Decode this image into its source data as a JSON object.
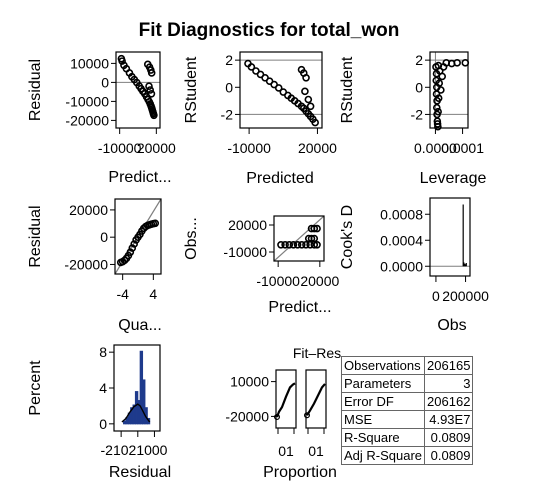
{
  "chart_data": {
    "type": "scatter",
    "title": "Fit Diagnostics for total_won",
    "style": {
      "axis_color": "#000000",
      "ref_line_color": "#7f7f7f",
      "point_color": "#000000",
      "hist_fill": "#1f3b8c",
      "density_color": "#000000"
    },
    "panels": [
      {
        "id": "resid_pred",
        "type": "scatter",
        "xlabel": "Predict...",
        "ylabel": "Residual",
        "xlim": [
          -13000,
          23000
        ],
        "ylim": [
          -24000,
          16000
        ],
        "xticks": [
          {
            "v": -10000,
            "label": "-10000"
          },
          {
            "v": 20000,
            "label": "20000"
          }
        ],
        "yticks": [
          {
            "v": 10000,
            "label": "10000"
          },
          {
            "v": 0,
            "label": "0"
          },
          {
            "v": -10000,
            "label": "-10000"
          },
          {
            "v": -20000,
            "label": "-20000"
          }
        ],
        "hlines": [
          0
        ],
        "points": [
          [
            -8600,
            12500
          ],
          [
            -8000,
            11200
          ],
          [
            -6500,
            9000
          ],
          [
            -4500,
            7200
          ],
          [
            -2000,
            5000
          ],
          [
            0,
            3000
          ],
          [
            2000,
            1500
          ],
          [
            4000,
            -100
          ],
          [
            6000,
            -1900
          ],
          [
            7500,
            -3300
          ],
          [
            9000,
            -4700
          ],
          [
            10500,
            -6000
          ],
          [
            12000,
            -7600
          ],
          [
            13200,
            -9000
          ],
          [
            14200,
            -10200
          ],
          [
            15000,
            -11300
          ],
          [
            15600,
            -12300
          ],
          [
            16100,
            -13200
          ],
          [
            16500,
            -14000
          ],
          [
            16900,
            -14900
          ],
          [
            17300,
            -15700
          ],
          [
            17600,
            -16500
          ],
          [
            18000,
            -17300
          ],
          [
            13000,
            9500
          ],
          [
            14500,
            8000
          ],
          [
            15500,
            6500
          ],
          [
            16200,
            5000
          ],
          [
            14000,
            -2000
          ],
          [
            15000,
            -4000
          ],
          [
            16000,
            -6000
          ]
        ]
      },
      {
        "id": "rstud_pred",
        "type": "scatter",
        "xlabel": "Predicted",
        "ylabel": "RStudent",
        "xlim": [
          -14000,
          22000
        ],
        "ylim": [
          -3,
          2.6
        ],
        "xticks": [
          {
            "v": -10000,
            "label": "-10000"
          },
          {
            "v": 20000,
            "label": "20000"
          }
        ],
        "yticks": [
          {
            "v": 2,
            "label": "2"
          },
          {
            "v": 0,
            "label": "0"
          },
          {
            "v": -2,
            "label": "-2"
          }
        ],
        "hlines": [
          2,
          -2
        ],
        "points": [
          [
            -10500,
            1.75
          ],
          [
            -9000,
            1.5
          ],
          [
            -7000,
            1.2
          ],
          [
            -5000,
            0.95
          ],
          [
            -3000,
            0.7
          ],
          [
            -1000,
            0.45
          ],
          [
            1000,
            0.2
          ],
          [
            3000,
            -0.05
          ],
          [
            5000,
            -0.35
          ],
          [
            7000,
            -0.6
          ],
          [
            8500,
            -0.8
          ],
          [
            10000,
            -1.0
          ],
          [
            11500,
            -1.2
          ],
          [
            13000,
            -1.4
          ],
          [
            14000,
            -1.55
          ],
          [
            15000,
            -1.75
          ],
          [
            16000,
            -1.95
          ],
          [
            17000,
            -2.15
          ],
          [
            18000,
            -2.35
          ],
          [
            19000,
            -2.6
          ],
          [
            13000,
            1.3
          ],
          [
            14000,
            1.05
          ],
          [
            15000,
            0.7
          ],
          [
            14500,
            -0.3
          ],
          [
            16000,
            -0.9
          ],
          [
            17000,
            -1.4
          ]
        ]
      },
      {
        "id": "rstud_lev",
        "type": "scatter",
        "xlabel": "Leverage",
        "ylabel": "RStudent",
        "xlim": [
          -2e-05,
          0.00012
        ],
        "ylim": [
          -3,
          2.6
        ],
        "xticks": [
          {
            "v": 0.0,
            "label": "0.0000"
          },
          {
            "v": 0.0001,
            "label": "0.0001"
          }
        ],
        "yticks": [
          {
            "v": 2,
            "label": "2"
          },
          {
            "v": 0,
            "label": "0"
          },
          {
            "v": -2,
            "label": "-2"
          }
        ],
        "hlines": [
          2,
          -2
        ],
        "vlines": [
          0.0
        ],
        "points": [
          [
            2e-06,
            1.5
          ],
          [
            4e-06,
            1.0
          ],
          [
            3e-06,
            0.5
          ],
          [
            5e-06,
            0.0
          ],
          [
            4e-06,
            -0.5
          ],
          [
            6e-06,
            -1.0
          ],
          [
            5e-06,
            -1.5
          ],
          [
            6e-06,
            -2.0
          ],
          [
            7e-06,
            -2.5
          ],
          [
            8e-06,
            -2.7
          ],
          [
            1e-05,
            -1.8
          ],
          [
            1.2e-05,
            -0.8
          ],
          [
            1.4e-05,
            0.3
          ],
          [
            1.6e-05,
            1.2
          ],
          [
            2e-05,
            -0.2
          ],
          [
            2.5e-05,
            0.8
          ],
          [
            3e-05,
            1.5
          ],
          [
            4e-05,
            1.8
          ],
          [
            6e-05,
            1.75
          ],
          [
            8e-05,
            1.8
          ],
          [
            0.00011,
            1.8
          ],
          [
            9e-06,
            -2.9
          ],
          [
            1.1e-05,
            1.6
          ]
        ]
      },
      {
        "id": "qq",
        "type": "scatter",
        "xlabel": "Qua...",
        "ylabel": "Residual",
        "xlim": [
          -6,
          6
        ],
        "ylim": [
          -27000,
          28000
        ],
        "xticks": [
          {
            "v": -4,
            "label": "-4"
          },
          {
            "v": 4,
            "label": "4"
          }
        ],
        "yticks": [
          {
            "v": 20000,
            "label": "20000"
          },
          {
            "v": 0,
            "label": "0"
          },
          {
            "v": -20000,
            "label": "-20000"
          }
        ],
        "diag_line": [
          [
            -6,
            -27000
          ],
          [
            6,
            28000
          ]
        ],
        "points": [
          [
            -4.5,
            -18500
          ],
          [
            -4,
            -18000
          ],
          [
            -3.5,
            -17000
          ],
          [
            -3,
            -15500
          ],
          [
            -2.5,
            -13500
          ],
          [
            -2,
            -11000
          ],
          [
            -1.5,
            -8000
          ],
          [
            -1,
            -5000
          ],
          [
            -0.5,
            -2000
          ],
          [
            0,
            0
          ],
          [
            0.5,
            2000
          ],
          [
            1,
            4500
          ],
          [
            1.5,
            6500
          ],
          [
            2,
            7800
          ],
          [
            2.5,
            8600
          ],
          [
            3,
            9100
          ],
          [
            3.5,
            9500
          ],
          [
            4,
            9900
          ],
          [
            4.5,
            10200
          ]
        ]
      },
      {
        "id": "obs_pred",
        "type": "scatter",
        "xlabel": "Predict...",
        "ylabel": "Obs...",
        "xlim": [
          -13000,
          23000
        ],
        "ylim": [
          -20000,
          30000
        ],
        "xticks": [
          {
            "v": -10000,
            "label": "-10000"
          },
          {
            "v": 20000,
            "label": "20000"
          }
        ],
        "yticks": [
          {
            "v": 20000,
            "label": "20000"
          },
          {
            "v": -10000,
            "label": "-10000"
          }
        ],
        "diag_line": [
          [
            -13000,
            -20000
          ],
          [
            23000,
            30000
          ]
        ],
        "points": [
          [
            -8000,
            -2000
          ],
          [
            -5000,
            -2000
          ],
          [
            -2000,
            -2000
          ],
          [
            1000,
            -2000
          ],
          [
            4000,
            -2000
          ],
          [
            7000,
            -2000
          ],
          [
            10000,
            -2000
          ],
          [
            13000,
            -2000
          ],
          [
            16000,
            -2000
          ],
          [
            18000,
            -2000
          ],
          [
            12000,
            5000
          ],
          [
            14000,
            5000
          ],
          [
            16000,
            5000
          ],
          [
            14000,
            16000
          ],
          [
            16000,
            16000
          ],
          [
            18000,
            16000
          ]
        ]
      },
      {
        "id": "cooks",
        "type": "line",
        "xlabel": "Obs",
        "ylabel": "Cook's D",
        "xlim": [
          -40000,
          230000
        ],
        "ylim": [
          -0.00015,
          0.00105
        ],
        "xticks": [
          {
            "v": 0,
            "label": "0"
          },
          {
            "v": 200000,
            "label": "200000"
          }
        ],
        "yticks": [
          {
            "v": 0.0008,
            "label": "0.0008"
          },
          {
            "v": 0.0004,
            "label": "0.0004"
          },
          {
            "v": 0.0,
            "label": "0.0000"
          }
        ],
        "hlines": [
          0.0
        ],
        "spikes": [
          [
            184000,
            0.00095
          ],
          [
            188000,
            6e-05
          ],
          [
            194000,
            4e-05
          ],
          [
            200000,
            3e-05
          ],
          [
            205000,
            5e-05
          ]
        ]
      },
      {
        "id": "hist",
        "type": "histogram",
        "xlabel": "Residual",
        "ylabel": "Percent",
        "xlim": [
          -30000,
          28000
        ],
        "ylim": [
          -0.8,
          8.8
        ],
        "xticks": [
          {
            "v": -21000,
            "label": "-21000"
          },
          {
            "v": 0,
            "label": "0"
          },
          {
            "v": 21000,
            "label": "21000"
          }
        ],
        "tick_text": "-21021000",
        "yticks": [
          {
            "v": 8,
            "label": "8"
          },
          {
            "v": 4,
            "label": "4"
          },
          {
            "v": 0,
            "label": "0"
          }
        ],
        "bins": [
          [
            -18000,
            0.3
          ],
          [
            -15000,
            0.7
          ],
          [
            -12000,
            1.2
          ],
          [
            -9000,
            1.8
          ],
          [
            -6000,
            2.1
          ],
          [
            -3000,
            3.6
          ],
          [
            0,
            2.6
          ],
          [
            3000,
            8.1
          ],
          [
            6000,
            4.9
          ],
          [
            9000,
            1.8
          ],
          [
            12000,
            0.6
          ]
        ],
        "bin_width": 3000,
        "density": [
          [
            -20000,
            0.2
          ],
          [
            -15000,
            0.6
          ],
          [
            -10000,
            1.3
          ],
          [
            -5000,
            1.9
          ],
          [
            0,
            2.2
          ],
          [
            3000,
            2.0
          ],
          [
            6000,
            1.5
          ],
          [
            10000,
            0.8
          ],
          [
            15000,
            0.2
          ]
        ]
      },
      {
        "id": "fit_spread",
        "type": "spread",
        "title": "Fit–Res",
        "xlabel": "Proportion",
        "sub_labels": [
          "Fit",
          "Res"
        ],
        "ylim": [
          -30000,
          20000
        ],
        "yticks": [
          {
            "v": 10000,
            "label": "10000"
          },
          {
            "v": -20000,
            "label": "-20000"
          }
        ],
        "xticks_text": [
          "01",
          "01"
        ],
        "curves": [
          [
            [
              0.05,
              -20500
            ],
            [
              0.15,
              -16000
            ],
            [
              0.3,
              -12000
            ],
            [
              0.5,
              -3000
            ],
            [
              0.7,
              5000
            ],
            [
              0.85,
              7500
            ],
            [
              0.95,
              8500
            ]
          ],
          [
            [
              0.05,
              -19000
            ],
            [
              0.2,
              -15000
            ],
            [
              0.4,
              -9000
            ],
            [
              0.6,
              -2000
            ],
            [
              0.8,
              5000
            ],
            [
              0.95,
              8000
            ]
          ]
        ]
      }
    ],
    "fit_statistics": [
      {
        "label": "Observations",
        "value": "206165"
      },
      {
        "label": "Parameters",
        "value": "3"
      },
      {
        "label": "Error DF",
        "value": "206162"
      },
      {
        "label": "MSE",
        "value": "4.93E7"
      },
      {
        "label": "R-Square",
        "value": "0.0809"
      },
      {
        "label": "Adj R-Square",
        "value": "0.0809"
      }
    ]
  }
}
